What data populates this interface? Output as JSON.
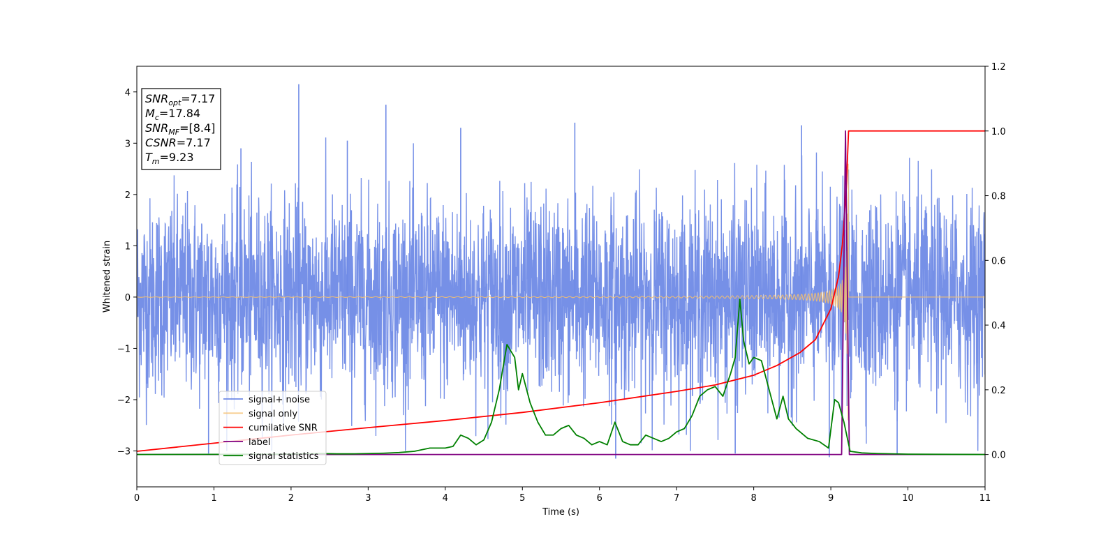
{
  "chart_data": {
    "type": "line",
    "xlabel": "Time (s)",
    "ylabel": "Whitened strain",
    "xlim": [
      0,
      11
    ],
    "ylim_left": [
      -3.7,
      4.5
    ],
    "ylim_right": [
      -0.1,
      1.2
    ],
    "x_ticks": [
      0,
      1,
      2,
      3,
      4,
      5,
      6,
      7,
      8,
      9,
      10,
      11
    ],
    "y_ticks_left": [
      -3,
      -2,
      -1,
      0,
      1,
      2,
      3,
      4
    ],
    "y_ticks_right": [
      0.0,
      0.2,
      0.4,
      0.6,
      0.8,
      1.0,
      1.2
    ],
    "y_tick_labels_right": [
      "0.0",
      "0.2",
      "0.4",
      "0.6",
      "0.8",
      "1.0",
      "1.2"
    ],
    "legend_position": "lower-left",
    "annotation": [
      {
        "base": "SNR",
        "sub": "opt",
        "value": "=7.17"
      },
      {
        "base": "M",
        "sub": "c",
        "value": "=17.84"
      },
      {
        "base": "SNR",
        "sub": "MF",
        "value": "=[8.4]"
      },
      {
        "base": "CSNR",
        "sub": "",
        "value": "=7.17"
      },
      {
        "base": "T",
        "sub": "m",
        "value": "=9.23"
      }
    ],
    "series": [
      {
        "name": "signal+ noise",
        "axis": "left",
        "color": "#6f8ae6",
        "kind": "noise",
        "std": 0.95,
        "spikes": [
          [
            2.1,
            4.15
          ],
          [
            3.23,
            3.75
          ],
          [
            5.68,
            3.4
          ],
          [
            6.21,
            -3.15
          ],
          [
            8.98,
            -3.12
          ],
          [
            9.86,
            -3.05
          ],
          [
            0.93,
            -3.05
          ],
          [
            7.76,
            -3.05
          ],
          [
            4.2,
            3.3
          ],
          [
            8.62,
            3.35
          ],
          [
            1.35,
            2.9
          ],
          [
            2.73,
            3.05
          ]
        ]
      },
      {
        "name": "signal only",
        "axis": "left",
        "color": "#f5c070",
        "kind": "chirp",
        "t_merger": 9.23
      },
      {
        "name": "cumilative SNR",
        "axis": "right",
        "color": "#ff0000",
        "x": [
          0,
          1,
          2,
          3,
          4,
          5,
          6,
          7,
          7.5,
          8,
          8.3,
          8.6,
          8.8,
          9.0,
          9.1,
          9.15,
          9.2,
          9.23,
          11
        ],
        "y": [
          0.01,
          0.035,
          0.06,
          0.083,
          0.105,
          0.13,
          0.16,
          0.195,
          0.215,
          0.245,
          0.275,
          0.315,
          0.355,
          0.45,
          0.55,
          0.65,
          0.82,
          1.0,
          1.0
        ]
      },
      {
        "name": "label",
        "axis": "right",
        "color": "#800080",
        "x": [
          0,
          9.14,
          9.19,
          9.24,
          11
        ],
        "y": [
          0,
          0,
          1.0,
          0,
          0
        ]
      },
      {
        "name": "signal statistics",
        "axis": "right",
        "color": "#008000",
        "x": [
          0,
          2.0,
          2.4,
          2.6,
          2.8,
          3.0,
          3.2,
          3.4,
          3.6,
          3.8,
          4.0,
          4.1,
          4.2,
          4.3,
          4.4,
          4.5,
          4.6,
          4.7,
          4.8,
          4.9,
          4.95,
          5.0,
          5.1,
          5.2,
          5.3,
          5.4,
          5.5,
          5.6,
          5.7,
          5.8,
          5.9,
          6.0,
          6.1,
          6.2,
          6.3,
          6.4,
          6.5,
          6.6,
          6.7,
          6.8,
          6.9,
          7.0,
          7.1,
          7.2,
          7.3,
          7.4,
          7.5,
          7.6,
          7.7,
          7.76,
          7.82,
          7.87,
          7.94,
          8.0,
          8.1,
          8.2,
          8.3,
          8.38,
          8.45,
          8.55,
          8.7,
          8.85,
          8.97,
          9.05,
          9.1,
          9.17,
          9.25,
          9.4,
          9.6,
          10.0,
          11.0
        ],
        "y": [
          0,
          0.001,
          0.003,
          0.002,
          0.002,
          0.003,
          0.004,
          0.006,
          0.01,
          0.02,
          0.02,
          0.025,
          0.06,
          0.05,
          0.03,
          0.045,
          0.1,
          0.2,
          0.34,
          0.3,
          0.2,
          0.25,
          0.16,
          0.1,
          0.06,
          0.06,
          0.08,
          0.09,
          0.06,
          0.05,
          0.03,
          0.04,
          0.03,
          0.1,
          0.04,
          0.03,
          0.03,
          0.06,
          0.05,
          0.04,
          0.05,
          0.07,
          0.08,
          0.12,
          0.18,
          0.2,
          0.21,
          0.18,
          0.25,
          0.3,
          0.48,
          0.35,
          0.28,
          0.3,
          0.29,
          0.2,
          0.11,
          0.18,
          0.11,
          0.08,
          0.05,
          0.04,
          0.02,
          0.17,
          0.16,
          0.1,
          0.01,
          0.005,
          0.003,
          0.001,
          0
        ]
      }
    ]
  }
}
